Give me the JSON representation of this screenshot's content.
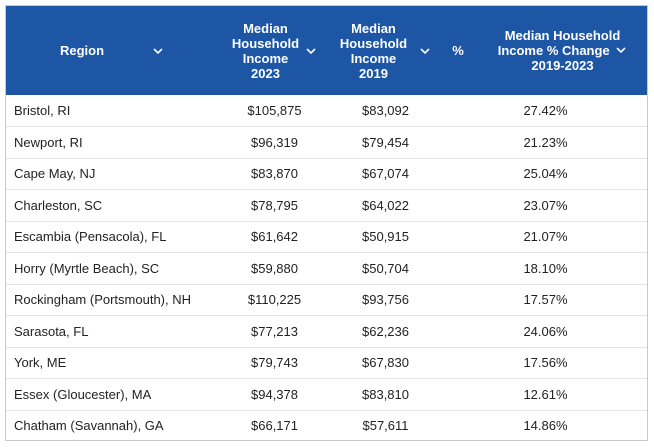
{
  "table": {
    "headers": {
      "region": "Region",
      "income_2023": [
        "Median",
        "Household",
        "Income",
        "2023"
      ],
      "income_2019": [
        "Median",
        "Household",
        "Income",
        "2019"
      ],
      "pct": "%",
      "change": [
        "Median Household",
        "Income % Change",
        "2019-2023"
      ]
    },
    "rows": [
      {
        "region": "Bristol, RI",
        "income_2023": "$105,875",
        "income_2019": "$83,092",
        "change": "27.42%"
      },
      {
        "region": "Newport, RI",
        "income_2023": "$96,319",
        "income_2019": "$79,454",
        "change": "21.23%"
      },
      {
        "region": "Cape May, NJ",
        "income_2023": "$83,870",
        "income_2019": "$67,074",
        "change": "25.04%"
      },
      {
        "region": "Charleston, SC",
        "income_2023": "$78,795",
        "income_2019": "$64,022",
        "change": "23.07%"
      },
      {
        "region": "Escambia (Pensacola), FL",
        "income_2023": "$61,642",
        "income_2019": "$50,915",
        "change": "21.07%"
      },
      {
        "region": "Horry (Myrtle Beach), SC",
        "income_2023": "$59,880",
        "income_2019": "$50,704",
        "change": "18.10%"
      },
      {
        "region": "Rockingham (Portsmouth), NH",
        "income_2023": "$110,225",
        "income_2019": "$93,756",
        "change": "17.57%"
      },
      {
        "region": "Sarasota, FL",
        "income_2023": "$77,213",
        "income_2019": "$62,236",
        "change": "24.06%"
      },
      {
        "region": "York, ME",
        "income_2023": "$79,743",
        "income_2019": "$67,830",
        "change": "17.56%"
      },
      {
        "region": "Essex (Gloucester), MA",
        "income_2023": "$94,378",
        "income_2019": "$83,810",
        "change": "12.61%"
      },
      {
        "region": "Chatham (Savannah), GA",
        "income_2023": "$66,171",
        "income_2019": "$57,611",
        "change": "14.86%"
      }
    ]
  },
  "colors": {
    "header_bg": "#1c56a4",
    "header_text": "#ffffff",
    "row_border": "#e4e4e4",
    "frame_border": "#c9c9c9"
  },
  "icons": {
    "sort": "chevron-down-icon"
  }
}
